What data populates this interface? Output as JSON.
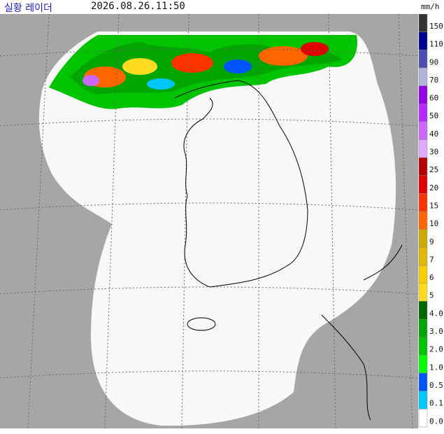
{
  "header": {
    "title": "실황 레이더",
    "time": "2026.08.26.11:50"
  },
  "legend": {
    "unit": "mm/h",
    "items": [
      {
        "label": "150",
        "color": "#333333"
      },
      {
        "label": "110",
        "color": "#000390"
      },
      {
        "label": "90",
        "color": "#4c4eb1"
      },
      {
        "label": "70",
        "color": "#b3b4de"
      },
      {
        "label": "60",
        "color": "#9300e4"
      },
      {
        "label": "50",
        "color": "#b329ff"
      },
      {
        "label": "40",
        "color": "#c969ff"
      },
      {
        "label": "30",
        "color": "#e0a9ff"
      },
      {
        "label": "25",
        "color": "#b40000"
      },
      {
        "label": "20",
        "color": "#e00000"
      },
      {
        "label": "15",
        "color": "#ff3300"
      },
      {
        "label": "10",
        "color": "#ff6600"
      },
      {
        "label": "9",
        "color": "#ccaa00"
      },
      {
        "label": "7",
        "color": "#e0b900"
      },
      {
        "label": "6",
        "color": "#f9cd00"
      },
      {
        "label": "5",
        "color": "#ffdc1f"
      },
      {
        "label": "4.0",
        "color": "#006800"
      },
      {
        "label": "3.0",
        "color": "#00a500"
      },
      {
        "label": "2.0",
        "color": "#00c400"
      },
      {
        "label": "1.0",
        "color": "#00ff00"
      },
      {
        "label": "0.5",
        "color": "#0055ff"
      },
      {
        "label": "0.1",
        "color": "#00c8ff"
      },
      {
        "label": "0.0",
        "color": "#ffffff"
      }
    ]
  }
}
